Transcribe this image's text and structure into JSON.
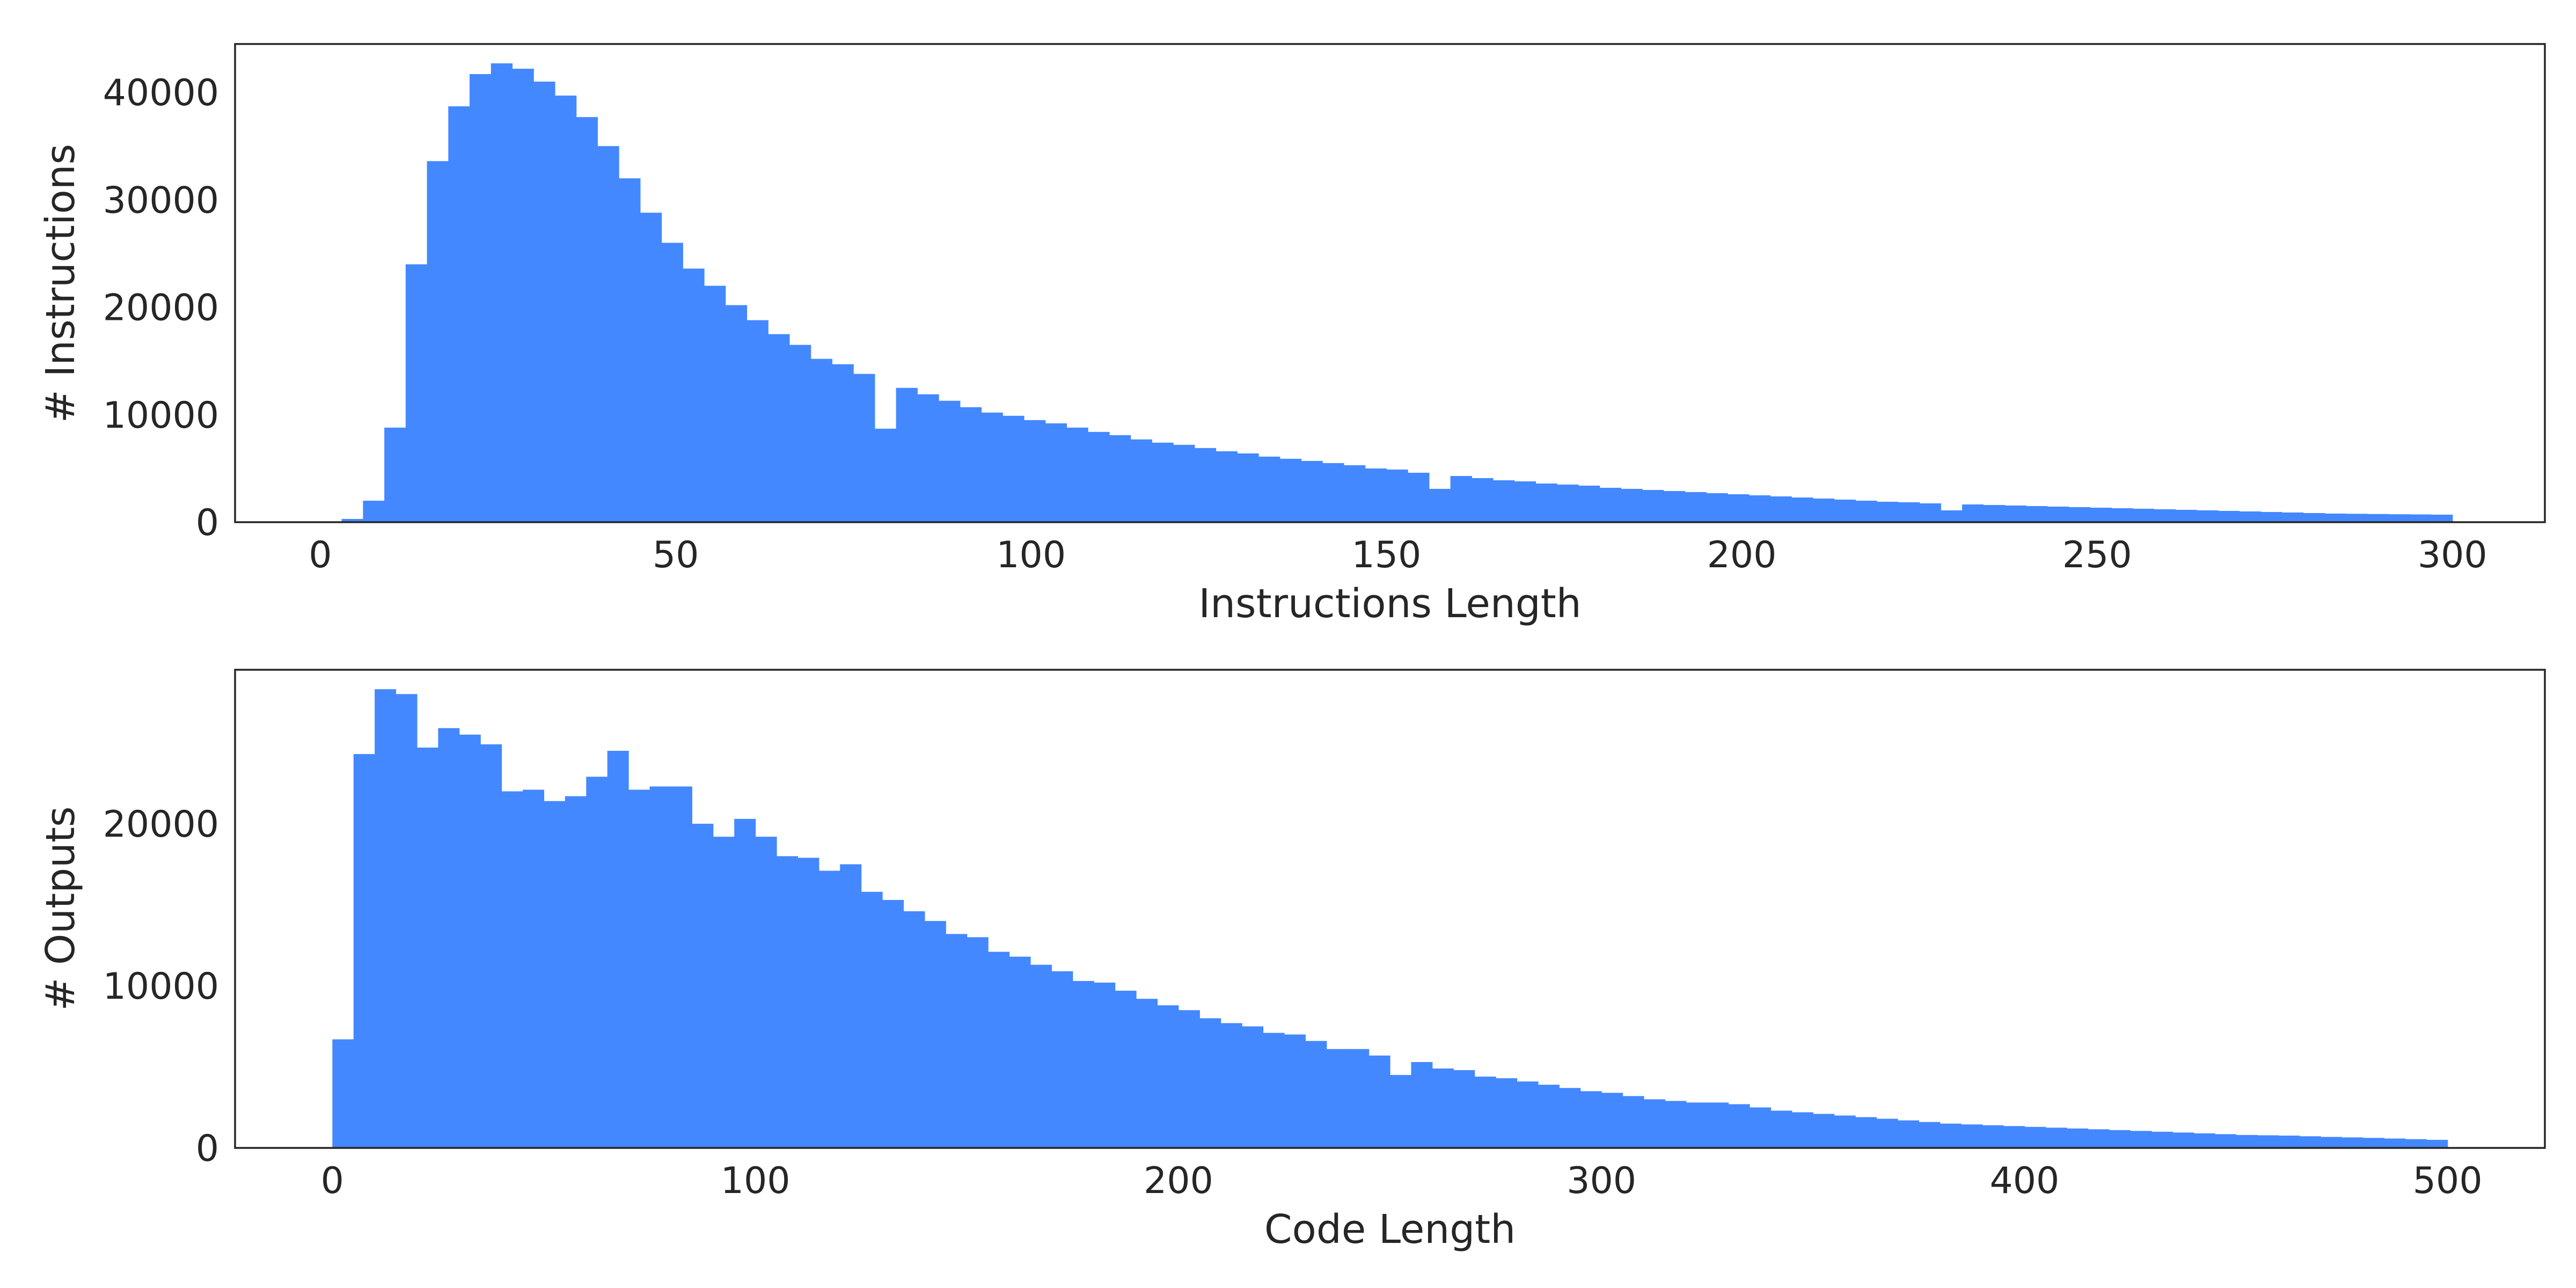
{
  "chart_data": [
    {
      "type": "bar",
      "subtype": "histogram",
      "xlabel": "Instructions Length",
      "ylabel": "# Instructions",
      "xlim": [
        -12,
        313
      ],
      "ylim": [
        0,
        44500
      ],
      "xticks": [
        0,
        50,
        100,
        150,
        200,
        250,
        300
      ],
      "yticks": [
        0,
        10000,
        20000,
        30000,
        40000
      ],
      "grid": false,
      "color": "#4488FF",
      "bin_width": 3,
      "bin_start": 0,
      "values": [
        0,
        300,
        2000,
        8800,
        24000,
        33600,
        38700,
        41700,
        42700,
        42200,
        41000,
        39700,
        37700,
        35000,
        32000,
        28800,
        26000,
        23600,
        22000,
        20200,
        18800,
        17500,
        16500,
        15200,
        14700,
        13800,
        8700,
        12500,
        11900,
        11300,
        10700,
        10200,
        9900,
        9500,
        9200,
        8800,
        8400,
        8100,
        7700,
        7400,
        7200,
        6900,
        6600,
        6400,
        6100,
        5900,
        5700,
        5500,
        5300,
        5000,
        4900,
        4600,
        3100,
        4300,
        4100,
        3900,
        3800,
        3600,
        3500,
        3400,
        3200,
        3100,
        3000,
        2900,
        2800,
        2700,
        2600,
        2500,
        2400,
        2300,
        2200,
        2100,
        2000,
        1900,
        1850,
        1750,
        1100,
        1650,
        1600,
        1550,
        1500,
        1450,
        1400,
        1350,
        1300,
        1250,
        1200,
        1150,
        1100,
        1050,
        1000,
        950,
        900,
        850,
        800,
        780,
        760,
        740,
        720,
        700
      ]
    },
    {
      "type": "bar",
      "subtype": "histogram",
      "xlabel": "Code Length",
      "ylabel": "# Outputs",
      "xlim": [
        -23,
        523
      ],
      "ylim": [
        0,
        29500
      ],
      "xticks": [
        0,
        100,
        200,
        300,
        400,
        500
      ],
      "yticks": [
        0,
        10000,
        20000
      ],
      "grid": false,
      "color": "#4488FF",
      "bin_width": 5,
      "bin_start": 0,
      "values": [
        6700,
        24300,
        28300,
        28000,
        24700,
        25900,
        25500,
        24900,
        22000,
        22100,
        21400,
        21700,
        22900,
        24500,
        22100,
        22300,
        22300,
        20000,
        19200,
        20300,
        19200,
        18000,
        17900,
        17100,
        17500,
        15800,
        15300,
        14600,
        14000,
        13200,
        13000,
        12100,
        11800,
        11300,
        10900,
        10300,
        10200,
        9700,
        9200,
        8800,
        8500,
        8000,
        7700,
        7500,
        7100,
        7000,
        6600,
        6100,
        6100,
        5700,
        4500,
        5300,
        4900,
        4800,
        4400,
        4300,
        4100,
        3900,
        3700,
        3500,
        3400,
        3200,
        3000,
        2900,
        2800,
        2800,
        2700,
        2500,
        2300,
        2200,
        2100,
        2000,
        1900,
        1800,
        1700,
        1600,
        1500,
        1450,
        1400,
        1350,
        1300,
        1250,
        1200,
        1150,
        1100,
        1050,
        1000,
        950,
        900,
        850,
        800,
        780,
        760,
        720,
        680,
        650,
        620,
        580,
        540,
        500
      ]
    }
  ]
}
